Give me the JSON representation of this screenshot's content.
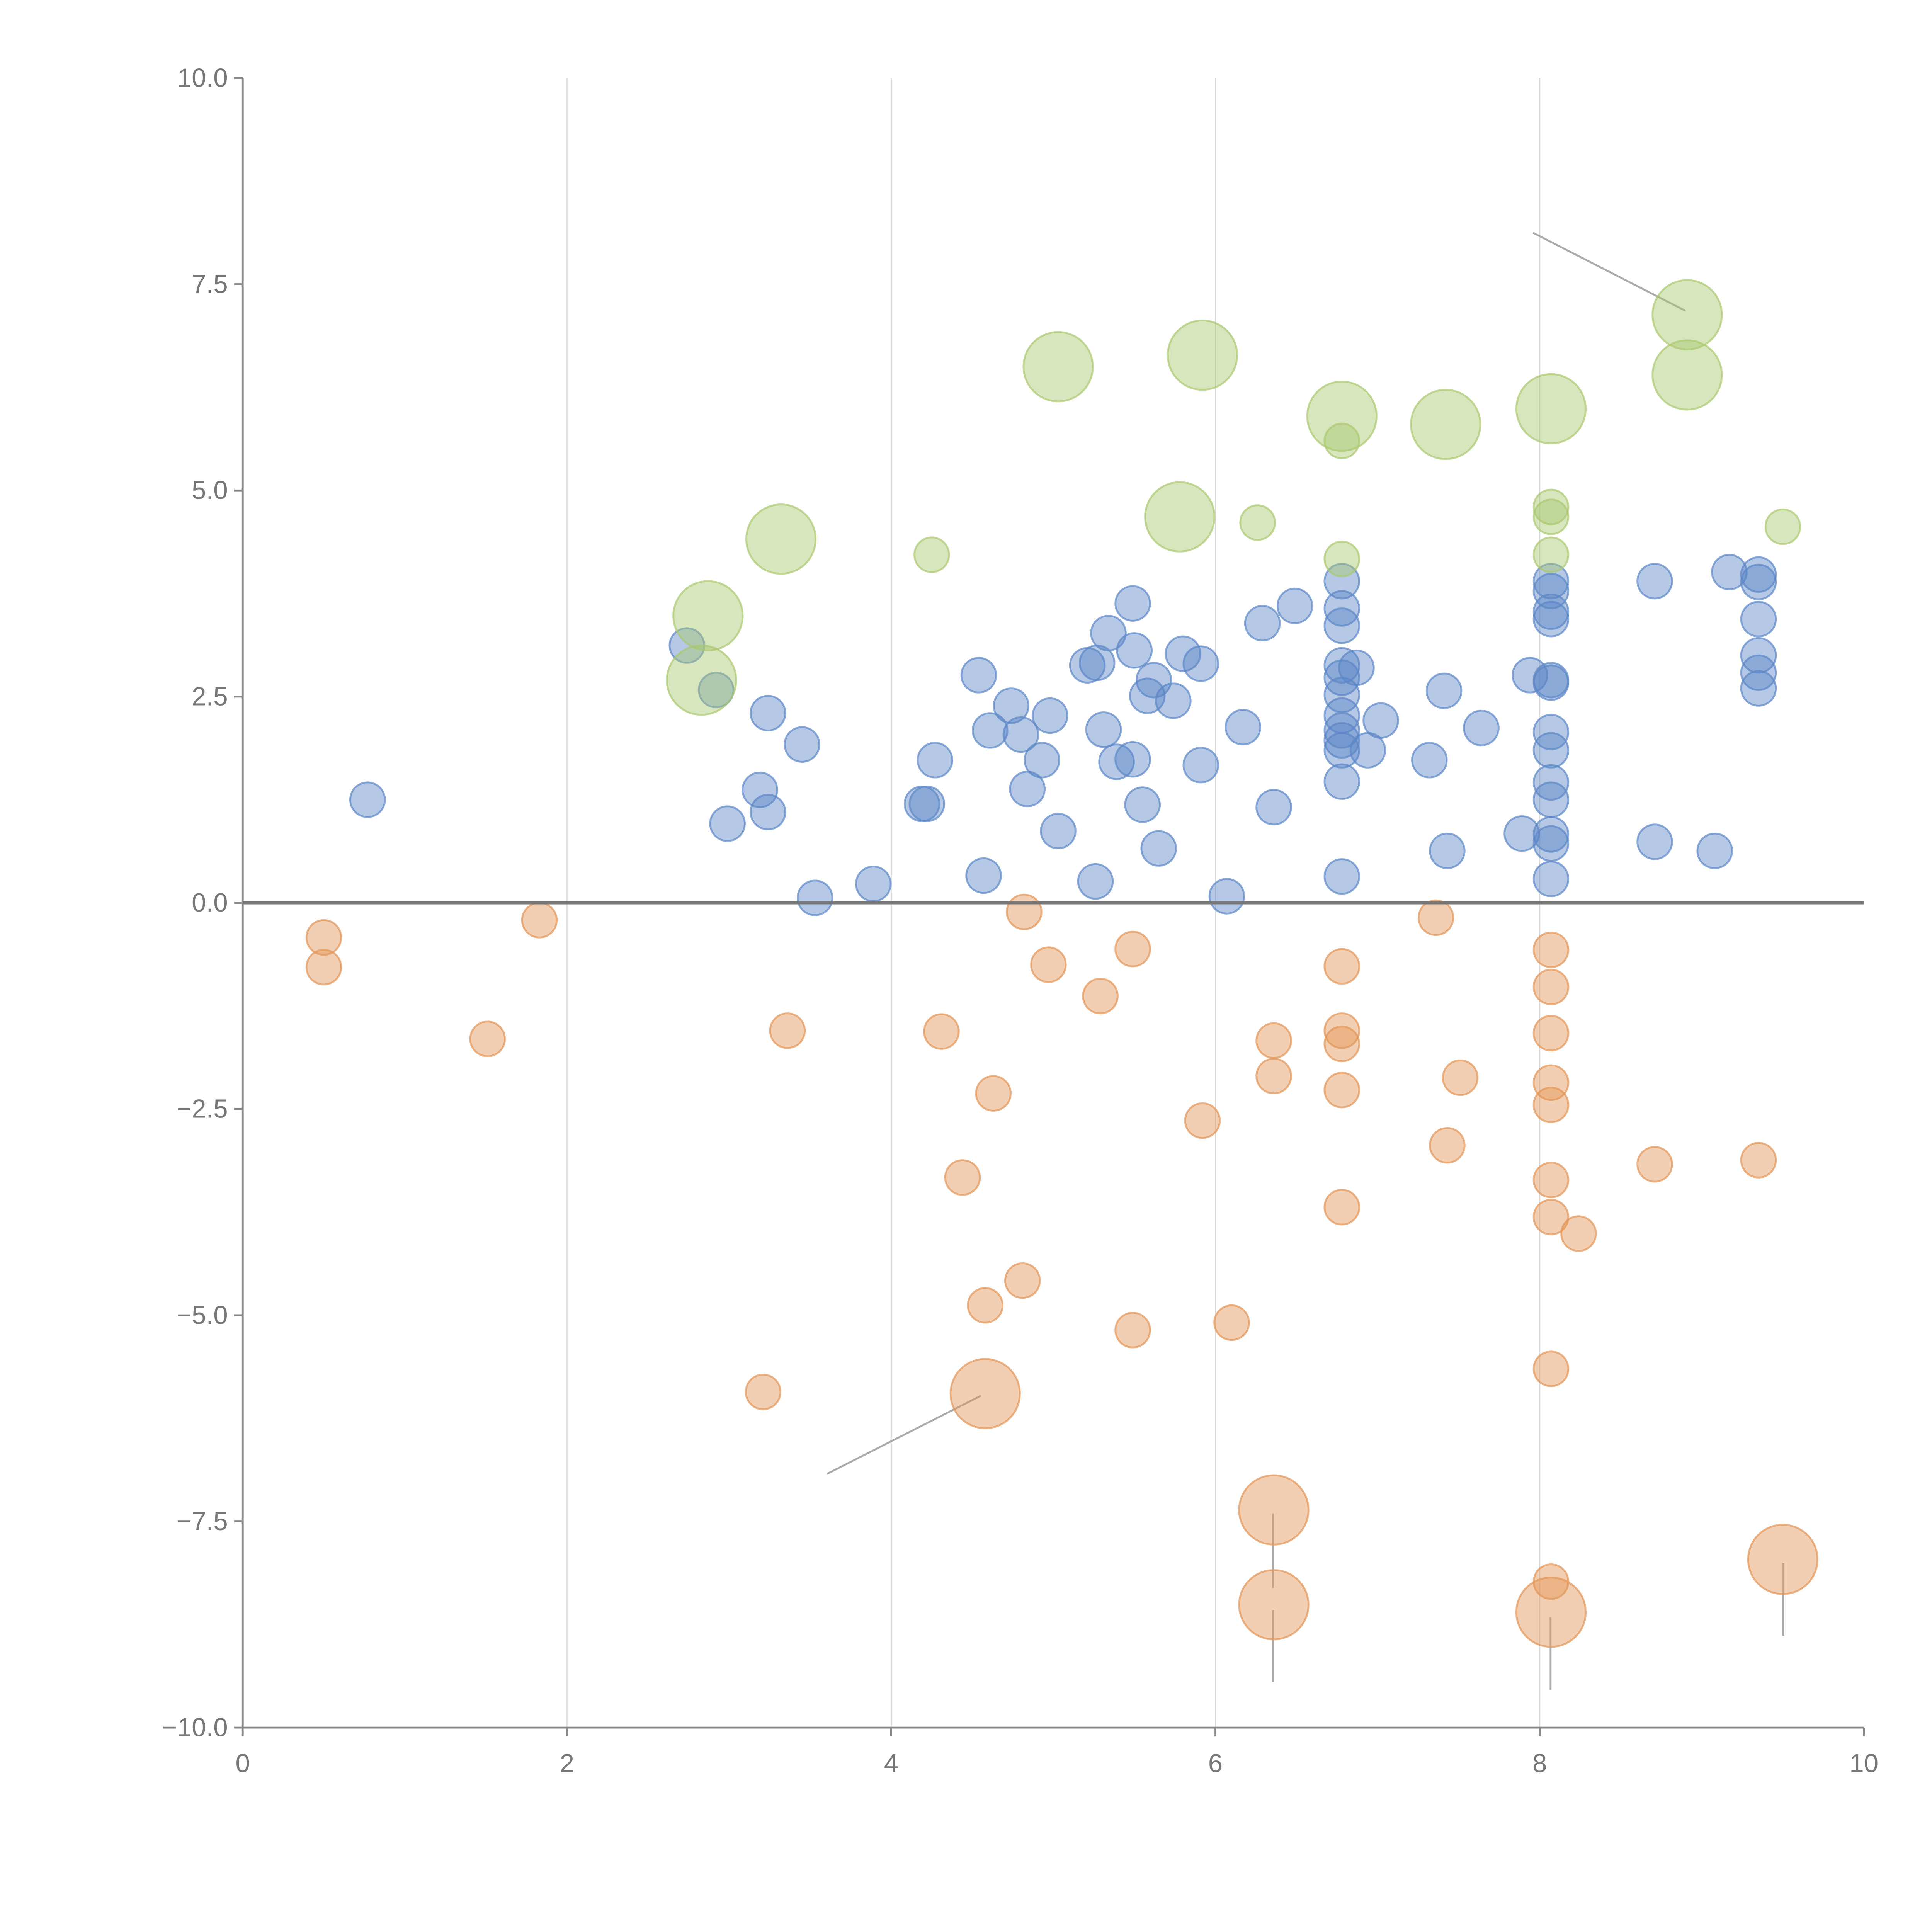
{
  "chart_data": {
    "type": "scatter",
    "title": "",
    "xlabel": "",
    "ylabel": "",
    "xlim": [
      0,
      10
    ],
    "ylim": [
      -10,
      10
    ],
    "x_ticks": [
      "0",
      "2",
      "4",
      "6",
      "8",
      "10"
    ],
    "x_tick_values": [
      0,
      2,
      4,
      6,
      8,
      10
    ],
    "y_ticks": [
      "10.0",
      "7.5",
      "5.0",
      "2.5",
      "0.0",
      "−2.5",
      "−5.0",
      "−7.5",
      "−10.0"
    ],
    "y_tick_values": [
      10,
      7.5,
      5,
      2.5,
      0,
      -2.5,
      -5,
      -7.5,
      -10
    ],
    "grid": "vertical",
    "legend": "none",
    "series": [
      {
        "name": "blue",
        "color": "#5b86c6",
        "points": [
          [
            0.77,
            1.25,
            1
          ],
          [
            2.74,
            3.12,
            1
          ],
          [
            2.92,
            2.58,
            1
          ],
          [
            3.24,
            2.3,
            1
          ],
          [
            3.45,
            1.92,
            1
          ],
          [
            3.19,
            1.37,
            1
          ],
          [
            3.24,
            1.1,
            1
          ],
          [
            2.99,
            0.96,
            1
          ],
          [
            3.53,
            0.06,
            1
          ],
          [
            3.89,
            0.23,
            1
          ],
          [
            4.19,
            1.2,
            1
          ],
          [
            4.22,
            1.2,
            1
          ],
          [
            4.27,
            1.73,
            1
          ],
          [
            4.54,
            2.76,
            1
          ],
          [
            4.57,
            0.33,
            1
          ],
          [
            4.61,
            2.09,
            1
          ],
          [
            4.74,
            2.39,
            1
          ],
          [
            4.8,
            2.04,
            1
          ],
          [
            4.84,
            1.38,
            1
          ],
          [
            4.93,
            1.73,
            1
          ],
          [
            4.98,
            2.27,
            1
          ],
          [
            5.03,
            0.87,
            1
          ],
          [
            5.21,
            2.88,
            1
          ],
          [
            5.27,
            2.91,
            1
          ],
          [
            5.26,
            0.26,
            1
          ],
          [
            5.31,
            2.1,
            1
          ],
          [
            5.34,
            3.27,
            1
          ],
          [
            5.39,
            1.71,
            1
          ],
          [
            5.49,
            3.63,
            1
          ],
          [
            5.5,
            3.06,
            1
          ],
          [
            5.49,
            1.74,
            1
          ],
          [
            5.55,
            1.19,
            1
          ],
          [
            5.58,
            2.51,
            1
          ],
          [
            5.62,
            2.7,
            1
          ],
          [
            5.65,
            0.66,
            1
          ],
          [
            5.74,
            2.45,
            1
          ],
          [
            5.8,
            3.02,
            1
          ],
          [
            5.91,
            2.9,
            1
          ],
          [
            5.91,
            1.67,
            1
          ],
          [
            6.07,
            0.08,
            1
          ],
          [
            6.17,
            2.13,
            1
          ],
          [
            6.29,
            3.39,
            1
          ],
          [
            6.36,
            1.16,
            1
          ],
          [
            6.49,
            3.6,
            1
          ],
          [
            6.78,
            3.9,
            1
          ],
          [
            6.78,
            3.57,
            1
          ],
          [
            6.78,
            3.36,
            1
          ],
          [
            6.78,
            2.88,
            1
          ],
          [
            6.78,
            2.73,
            1
          ],
          [
            6.78,
            2.52,
            1
          ],
          [
            6.78,
            2.27,
            1
          ],
          [
            6.78,
            2.09,
            1
          ],
          [
            6.78,
            1.97,
            1
          ],
          [
            6.78,
            1.85,
            1
          ],
          [
            6.78,
            1.47,
            1
          ],
          [
            6.78,
            0.32,
            1
          ],
          [
            6.87,
            2.85,
            1
          ],
          [
            6.94,
            1.85,
            1
          ],
          [
            7.02,
            2.21,
            1
          ],
          [
            7.32,
            1.73,
            1
          ],
          [
            7.41,
            2.57,
            1
          ],
          [
            7.43,
            0.63,
            1
          ],
          [
            7.64,
            2.12,
            1
          ],
          [
            7.89,
            0.84,
            1
          ],
          [
            7.94,
            2.76,
            1
          ],
          [
            8.07,
            3.9,
            1
          ],
          [
            8.07,
            3.78,
            1
          ],
          [
            8.07,
            3.53,
            1
          ],
          [
            8.07,
            3.44,
            1
          ],
          [
            8.07,
            2.7,
            1
          ],
          [
            8.07,
            2.67,
            1
          ],
          [
            8.07,
            2.07,
            1
          ],
          [
            8.07,
            1.85,
            1
          ],
          [
            8.07,
            1.46,
            1
          ],
          [
            8.07,
            1.25,
            1
          ],
          [
            8.07,
            0.83,
            1
          ],
          [
            8.07,
            0.72,
            1
          ],
          [
            8.07,
            0.29,
            1
          ],
          [
            8.71,
            3.9,
            1
          ],
          [
            8.71,
            0.74,
            1
          ],
          [
            9.08,
            0.63,
            1
          ],
          [
            9.17,
            4.01,
            1
          ],
          [
            9.35,
            3.98,
            1
          ],
          [
            9.35,
            3.89,
            1
          ],
          [
            9.35,
            3.44,
            1
          ],
          [
            9.35,
            3.0,
            1
          ],
          [
            9.35,
            2.79,
            1
          ],
          [
            9.35,
            2.6,
            1
          ]
        ]
      },
      {
        "name": "orange",
        "color": "#e39455",
        "points": [
          [
            0.5,
            -0.42,
            1
          ],
          [
            0.5,
            -0.78,
            1
          ],
          [
            1.51,
            -1.65,
            1
          ],
          [
            1.83,
            -0.21,
            1
          ],
          [
            3.21,
            -5.93,
            1
          ],
          [
            3.36,
            -1.55,
            1
          ],
          [
            4.31,
            -1.56,
            1
          ],
          [
            4.44,
            -3.33,
            1
          ],
          [
            4.58,
            -4.88,
            1
          ],
          [
            4.63,
            -2.31,
            1
          ],
          [
            4.81,
            -4.58,
            1
          ],
          [
            4.82,
            -0.11,
            1
          ],
          [
            4.97,
            -0.75,
            1
          ],
          [
            5.29,
            -1.13,
            1
          ],
          [
            5.49,
            -0.56,
            1
          ],
          [
            5.49,
            -5.18,
            1
          ],
          [
            5.92,
            -2.64,
            1
          ],
          [
            6.1,
            -5.09,
            1
          ],
          [
            6.36,
            -1.67,
            1
          ],
          [
            6.36,
            -2.1,
            1
          ],
          [
            6.78,
            -0.77,
            1
          ],
          [
            6.78,
            -1.55,
            1
          ],
          [
            6.78,
            -1.71,
            1
          ],
          [
            6.78,
            -2.27,
            1
          ],
          [
            6.78,
            -3.69,
            1
          ],
          [
            7.36,
            -0.18,
            1
          ],
          [
            7.43,
            -2.94,
            1
          ],
          [
            7.51,
            -2.12,
            1
          ],
          [
            8.07,
            -0.57,
            1
          ],
          [
            8.07,
            -1.02,
            1
          ],
          [
            8.07,
            -1.58,
            1
          ],
          [
            8.07,
            -2.18,
            1
          ],
          [
            8.07,
            -2.45,
            1
          ],
          [
            8.07,
            -3.36,
            1
          ],
          [
            8.07,
            -3.81,
            1
          ],
          [
            8.07,
            -5.65,
            1
          ],
          [
            8.07,
            -8.23,
            1
          ],
          [
            8.24,
            -4.01,
            1
          ],
          [
            8.71,
            -3.17,
            1
          ],
          [
            9.35,
            -3.12,
            1
          ],
          [
            4.58,
            -5.95,
            2
          ],
          [
            6.36,
            -7.36,
            2
          ],
          [
            6.36,
            -8.51,
            2
          ],
          [
            8.07,
            -8.6,
            2
          ],
          [
            9.5,
            -7.96,
            2
          ]
        ]
      },
      {
        "name": "green",
        "color": "#a9c76e",
        "points": [
          [
            2.87,
            3.48,
            2
          ],
          [
            2.83,
            2.7,
            2
          ],
          [
            3.32,
            4.41,
            2
          ],
          [
            5.03,
            6.5,
            2
          ],
          [
            5.92,
            6.64,
            2
          ],
          [
            5.78,
            4.68,
            2
          ],
          [
            6.78,
            5.9,
            2
          ],
          [
            7.42,
            5.8,
            2
          ],
          [
            8.07,
            5.99,
            2
          ],
          [
            8.91,
            7.13,
            2
          ],
          [
            8.91,
            6.4,
            2
          ],
          [
            4.25,
            4.22,
            1
          ],
          [
            6.26,
            4.61,
            1
          ],
          [
            6.78,
            5.6,
            1
          ],
          [
            6.78,
            4.17,
            1
          ],
          [
            8.07,
            4.8,
            1
          ],
          [
            8.07,
            4.68,
            1
          ],
          [
            8.07,
            4.22,
            1
          ],
          [
            9.5,
            4.56,
            1
          ]
        ]
      }
    ]
  }
}
